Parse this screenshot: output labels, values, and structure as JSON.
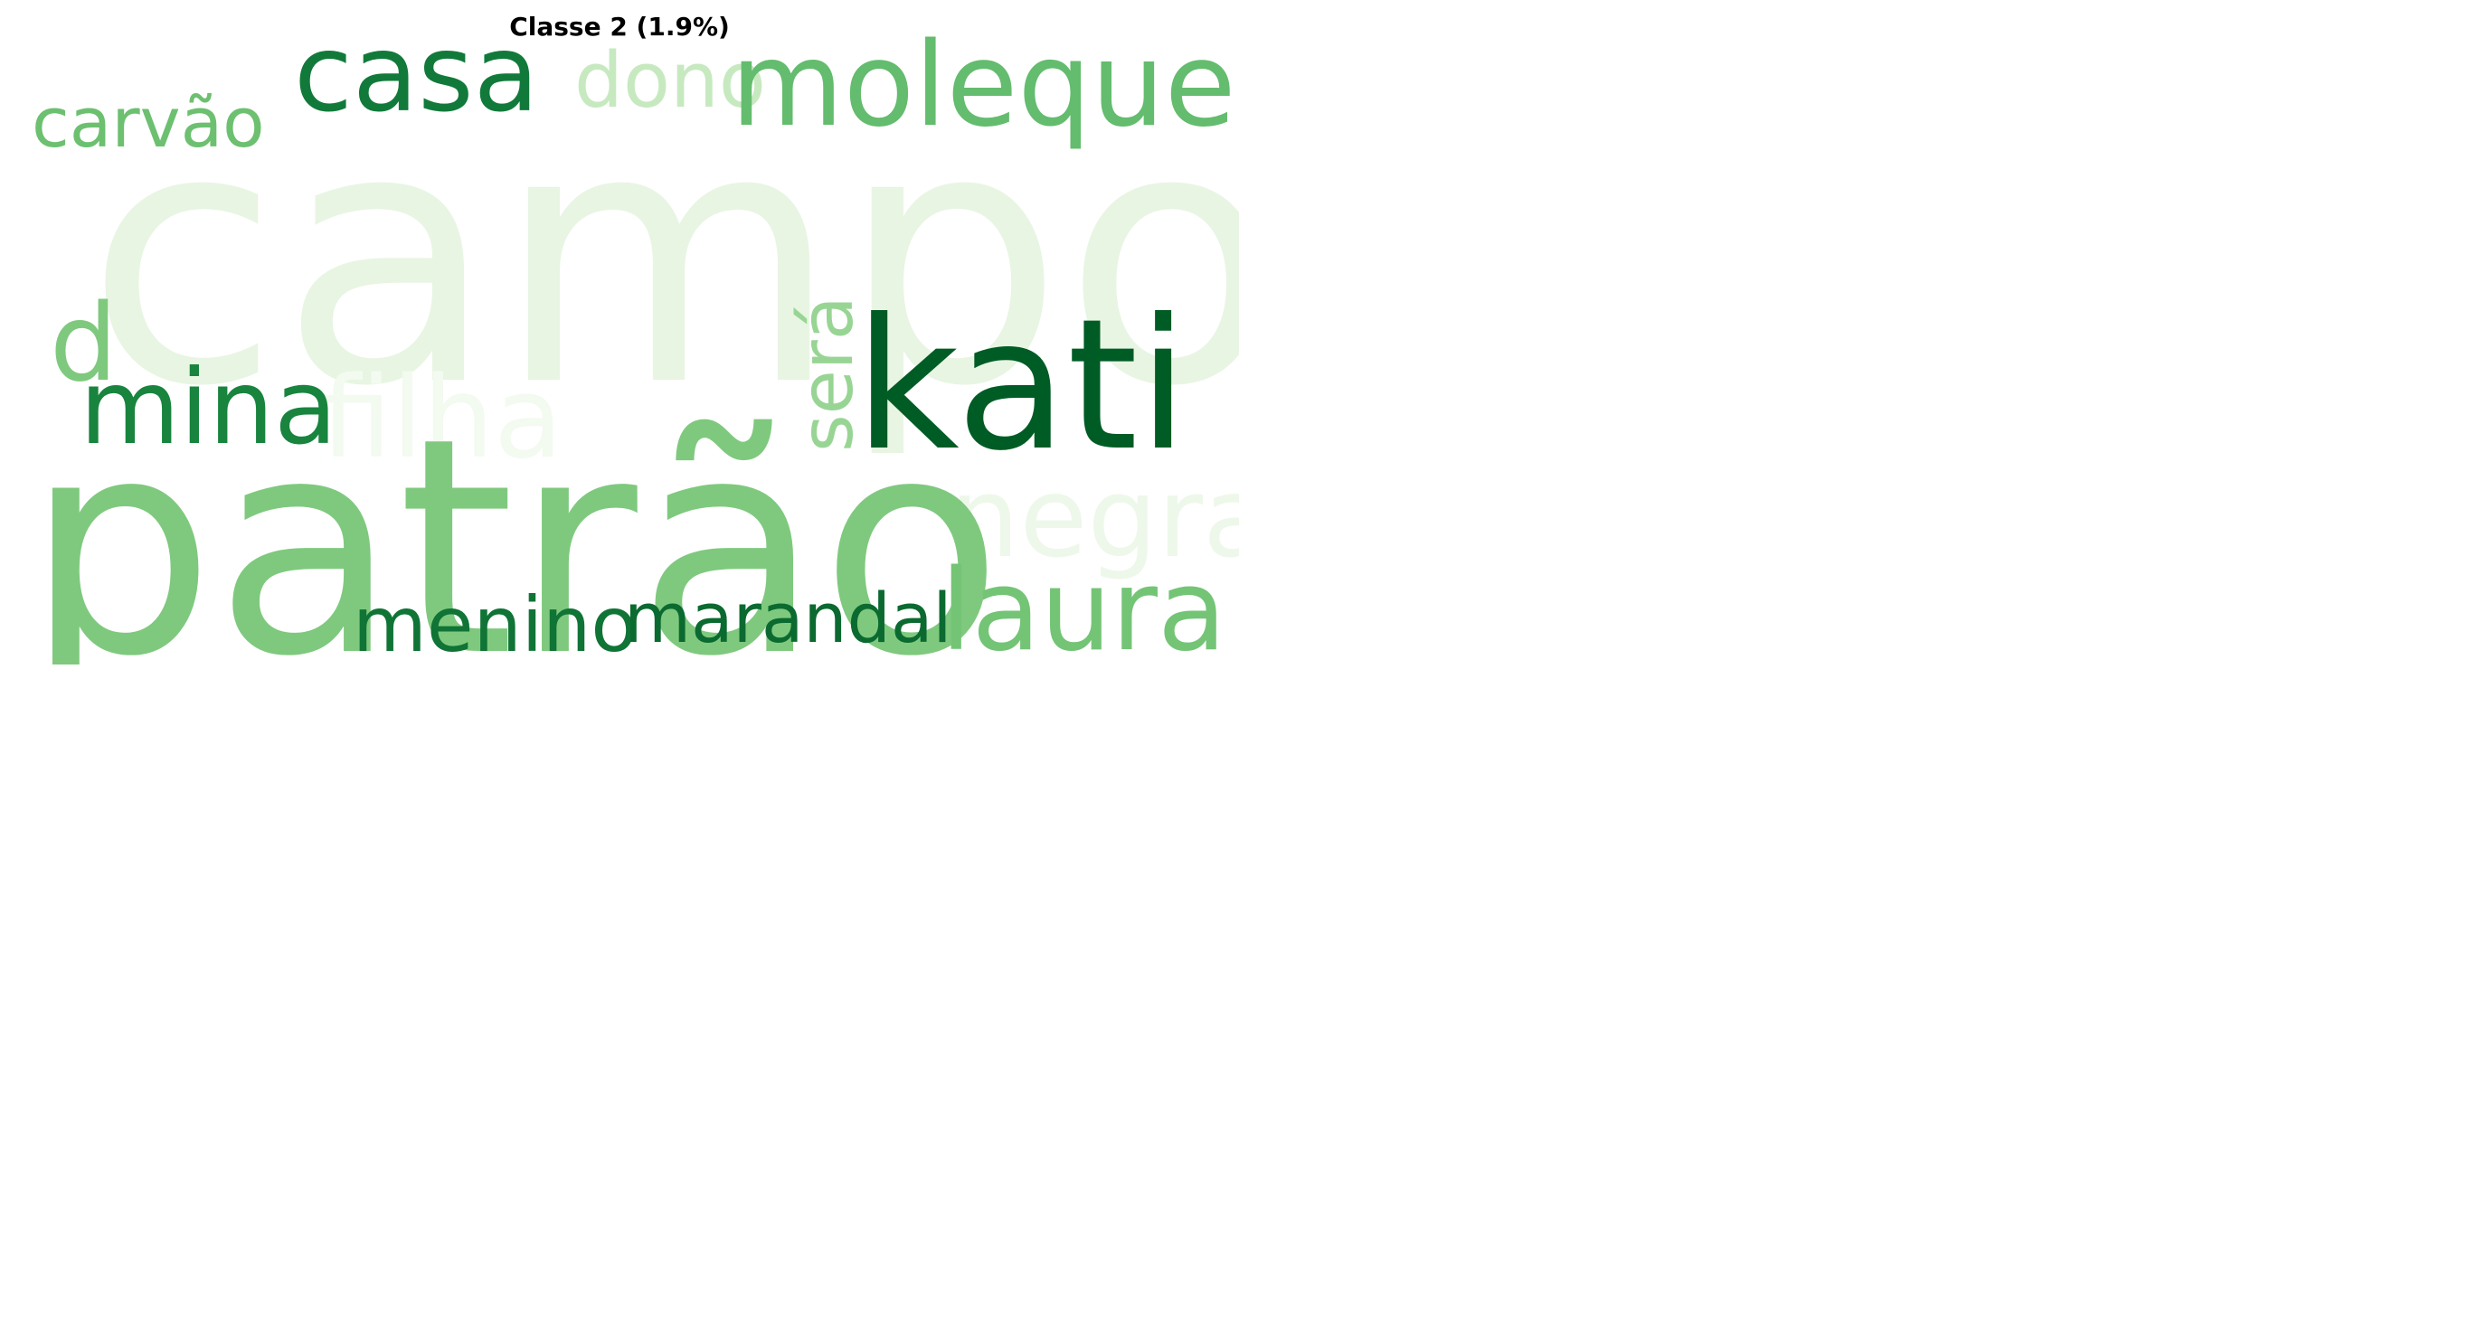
{
  "title": "Classe 2 (1.9%)",
  "words": [
    {
      "text": "campos",
      "color": "#e8f5e3"
    },
    {
      "text": "filha",
      "color": "#f3faf0"
    },
    {
      "text": "negra",
      "color": "#eef8ea"
    },
    {
      "text": "dono",
      "color": "#c7e9c0"
    },
    {
      "text": "patrão",
      "color": "#7fc97e"
    },
    {
      "text": "carvão",
      "color": "#6cc070"
    },
    {
      "text": "moleque",
      "color": "#64bc6e"
    },
    {
      "text": "d",
      "color": "#7fc97e"
    },
    {
      "text": "será",
      "color": "#98d594"
    },
    {
      "text": "laura",
      "color": "#74c476"
    },
    {
      "text": "casa",
      "color": "#117a3a"
    },
    {
      "text": "mina",
      "color": "#18843e"
    },
    {
      "text": "menino",
      "color": "#0f7435"
    },
    {
      "text": "marandal",
      "color": "#0b6a30"
    },
    {
      "text": "kati",
      "color": "#005c25"
    }
  ]
}
